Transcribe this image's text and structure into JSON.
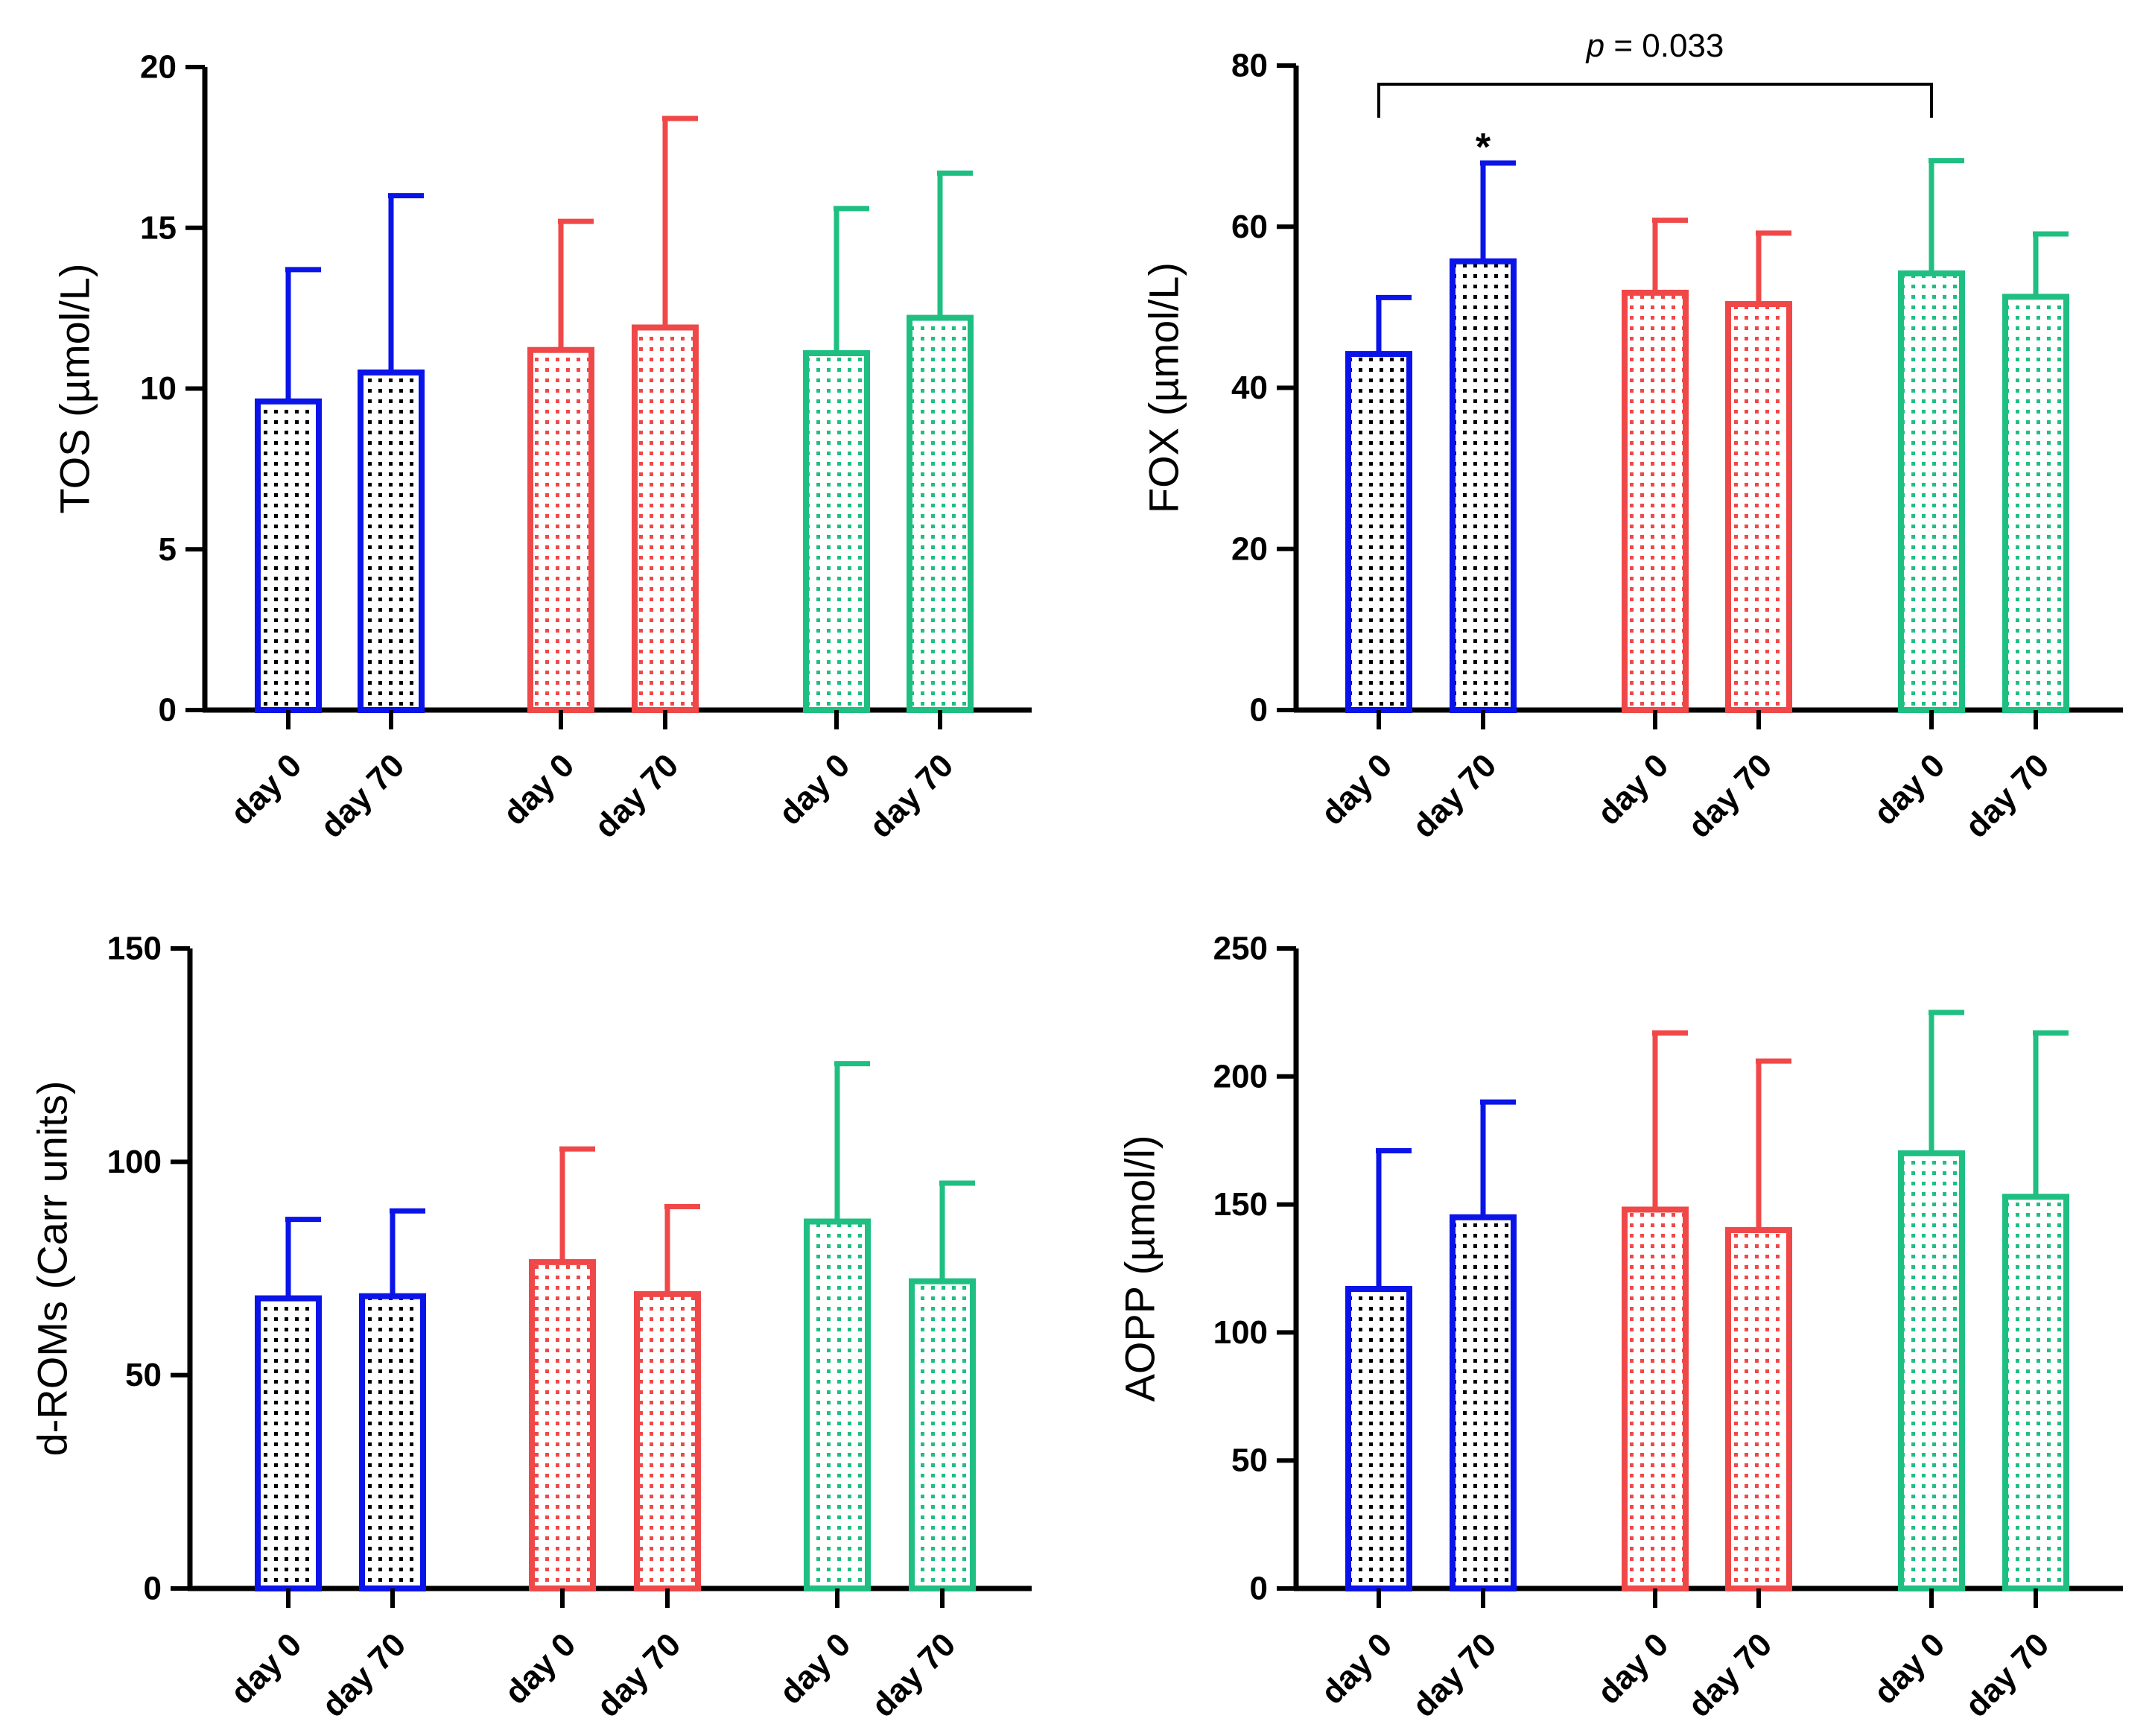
{
  "colors": {
    "group1": "#0a14e8",
    "group2": "#f04848",
    "group3": "#1fbf82",
    "axis": "#000000"
  },
  "chart_data": [
    {
      "type": "bar",
      "id": "tos",
      "ylabel": "TOS (µmol/L)",
      "ylim": [
        0,
        20
      ],
      "yticks": [
        0,
        5,
        10,
        15,
        20
      ],
      "categories": [
        "day 0",
        "day 70",
        "day 0",
        "day 70",
        "day 0",
        "day 70"
      ],
      "groups": [
        0,
        0,
        1,
        1,
        2,
        2
      ],
      "values": [
        9.6,
        10.5,
        11.2,
        11.9,
        11.1,
        12.2
      ],
      "errors": [
        4.1,
        5.5,
        4.0,
        6.5,
        4.5,
        4.5
      ],
      "annotations": []
    },
    {
      "type": "bar",
      "id": "fox",
      "ylabel": "FOX (µmol/L)",
      "ylim": [
        0,
        80
      ],
      "yticks": [
        0,
        20,
        40,
        60,
        80
      ],
      "categories": [
        "day 0",
        "day 70",
        "day 0",
        "day 70",
        "day 0",
        "day 70"
      ],
      "groups": [
        0,
        0,
        1,
        1,
        2,
        2
      ],
      "values": [
        44.2,
        55.7,
        51.8,
        50.4,
        54.2,
        51.3
      ],
      "errors": [
        7.0,
        12.2,
        9.0,
        8.8,
        14.0,
        7.8
      ],
      "annotations": [
        {
          "type": "star",
          "bar": 1,
          "text": "*"
        },
        {
          "type": "bracket",
          "from": 0,
          "to": 4,
          "text_prefix": "p",
          "text_suffix": " = 0.033"
        }
      ]
    },
    {
      "type": "bar",
      "id": "droms",
      "ylabel": "d-ROMs (Carr units)",
      "ylim": [
        0,
        150
      ],
      "yticks": [
        0,
        50,
        100,
        150
      ],
      "categories": [
        "day 0",
        "day 70",
        "day 0",
        "day 70",
        "day 0",
        "day 70"
      ],
      "groups": [
        0,
        0,
        1,
        1,
        2,
        2
      ],
      "values": [
        68,
        68.5,
        76.5,
        69,
        86,
        72
      ],
      "errors": [
        18.5,
        20,
        26.5,
        20.5,
        37,
        23
      ],
      "annotations": []
    },
    {
      "type": "bar",
      "id": "aopp",
      "ylabel": "AOPP (µmol/l)",
      "ylim": [
        0,
        250
      ],
      "yticks": [
        0,
        50,
        100,
        150,
        200,
        250
      ],
      "categories": [
        "day 0",
        "day 70",
        "day 0",
        "day 70",
        "day 0",
        "day 70"
      ],
      "groups": [
        0,
        0,
        1,
        1,
        2,
        2
      ],
      "values": [
        117,
        145,
        148,
        140,
        170,
        153
      ],
      "errors": [
        54,
        45,
        69,
        66,
        55,
        64
      ],
      "annotations": []
    }
  ]
}
